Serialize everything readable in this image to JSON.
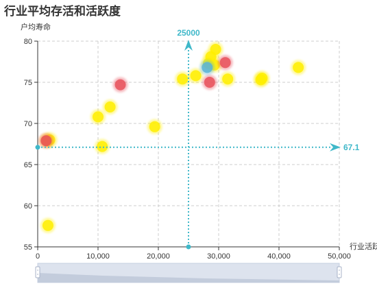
{
  "chart_data": {
    "type": "scatter",
    "title": "行业平均存活和活跃度",
    "xlabel": "行业活跃度",
    "ylabel": "户均寿命",
    "xlim": [
      0,
      50000
    ],
    "ylim": [
      55,
      80
    ],
    "x_ticks": [
      "0",
      "10,000",
      "20,000",
      "30,000",
      "40,000",
      "50,000"
    ],
    "y_ticks": [
      "55",
      "60",
      "65",
      "70",
      "75",
      "80"
    ],
    "grid": true,
    "reference_lines": {
      "x_value": 25000,
      "x_label": "25000",
      "y_value": 67.1,
      "y_label": "67.1",
      "color": "#3fb8c9"
    },
    "series": [
      {
        "color": "#ffee00",
        "points": [
          [
            1700,
            57.6
          ],
          [
            1500,
            67.9
          ],
          [
            2000,
            68.0
          ],
          [
            10000,
            70.8
          ],
          [
            10700,
            67.2
          ],
          [
            12000,
            72.0
          ],
          [
            19400,
            69.6
          ],
          [
            24000,
            75.4
          ],
          [
            26200,
            75.8
          ],
          [
            28300,
            77.3
          ],
          [
            28700,
            78.1
          ],
          [
            29300,
            77.1
          ],
          [
            29500,
            79.0
          ],
          [
            31500,
            75.4
          ],
          [
            37000,
            75.3
          ],
          [
            37200,
            75.5
          ],
          [
            43200,
            76.8
          ]
        ]
      },
      {
        "color": "#e8505b",
        "points": [
          [
            1400,
            67.9
          ],
          [
            13700,
            74.7
          ],
          [
            28500,
            75.0
          ],
          [
            31100,
            77.4
          ]
        ]
      },
      {
        "color": "#5ab4d6",
        "points": [
          [
            28100,
            76.8
          ]
        ]
      }
    ]
  }
}
